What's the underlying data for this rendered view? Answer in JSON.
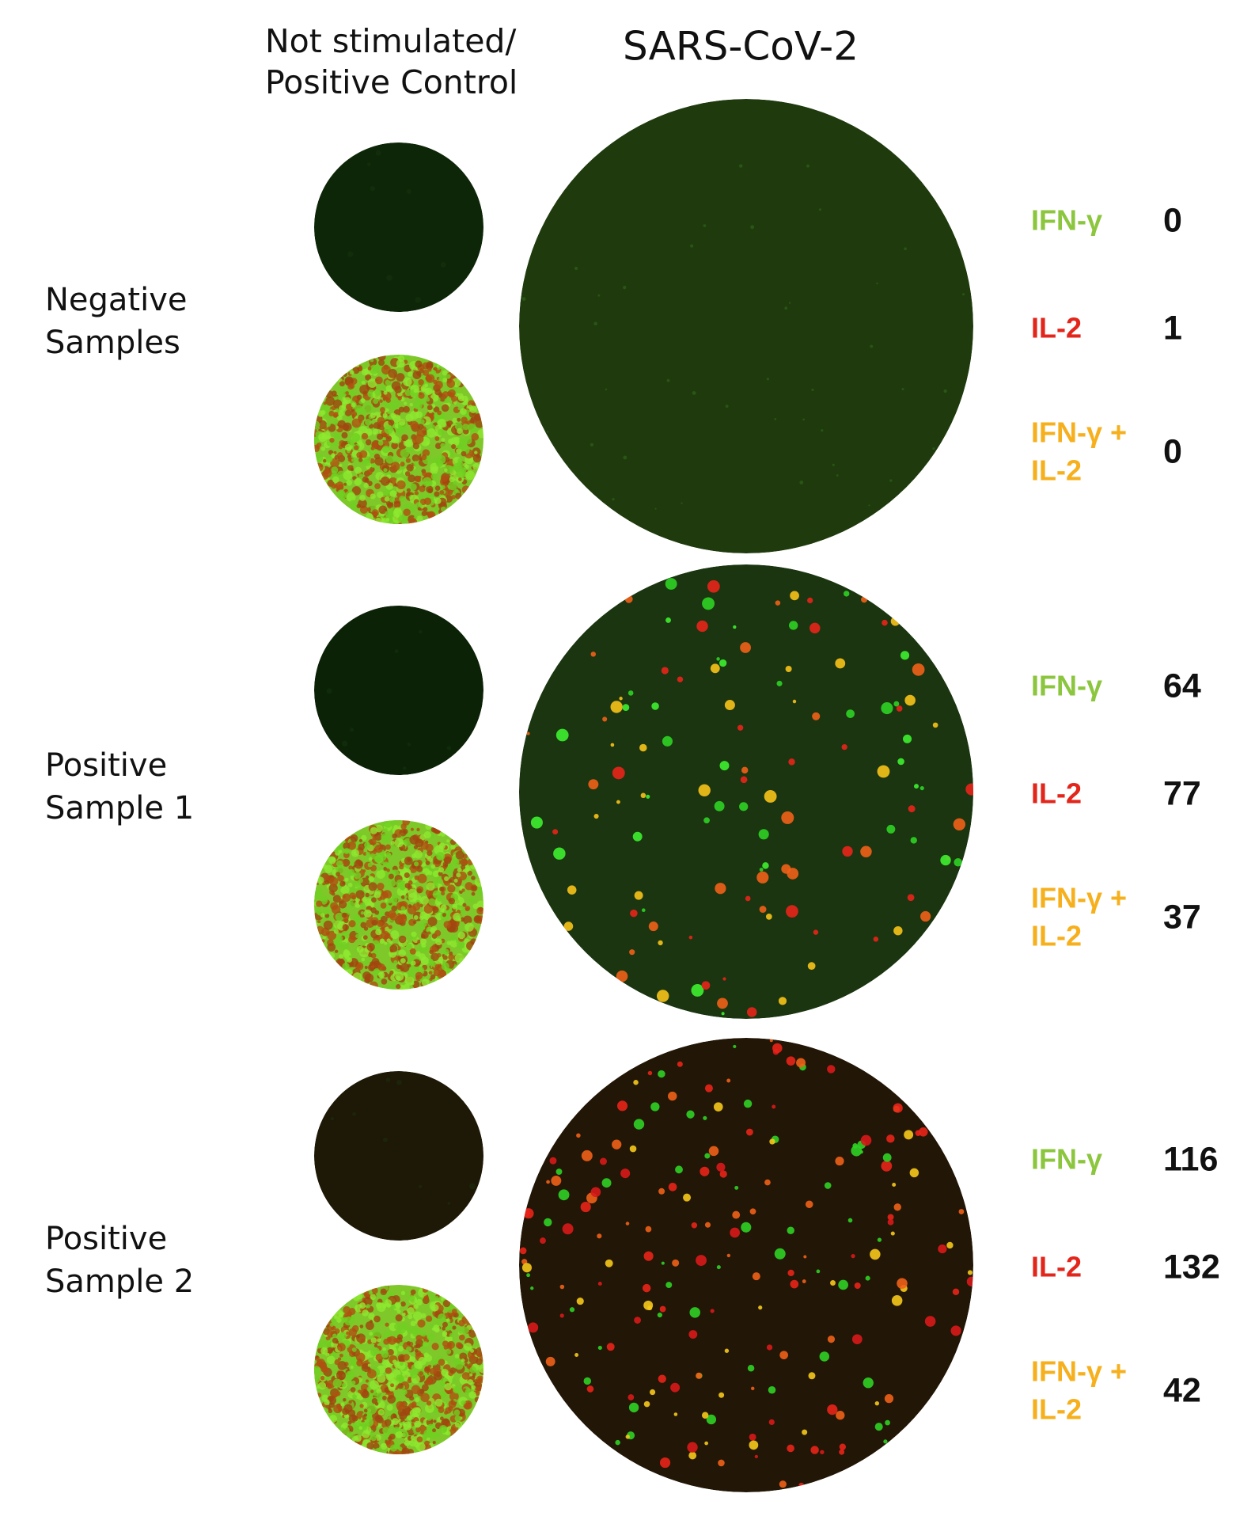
{
  "header": {
    "control_lines": [
      "Not stimulated/",
      "Positive Control"
    ],
    "stimulus": "SARS-CoV-2"
  },
  "marker_colors": [
    "#8cc63e",
    "#e3261c",
    "#f6b01e"
  ],
  "rows": [
    {
      "label_lines": [
        "Negative",
        "Samples"
      ],
      "counts": [
        {
          "label_lines": [
            "IFN-γ"
          ],
          "value": 0
        },
        {
          "label_lines": [
            "IL-2"
          ],
          "value": 1
        },
        {
          "label_lines": [
            "IFN-γ +",
            "IL-2"
          ],
          "value": 0
        }
      ]
    },
    {
      "label_lines": [
        "Positive",
        "Sample 1"
      ],
      "counts": [
        {
          "label_lines": [
            "IFN-γ"
          ],
          "value": 64
        },
        {
          "label_lines": [
            "IL-2"
          ],
          "value": 77
        },
        {
          "label_lines": [
            "IFN-γ +",
            "IL-2"
          ],
          "value": 37
        }
      ]
    },
    {
      "label_lines": [
        "Positive",
        "Sample 2"
      ],
      "counts": [
        {
          "label_lines": [
            "IFN-γ"
          ],
          "value": 116
        },
        {
          "label_lines": [
            "IL-2"
          ],
          "value": 132
        },
        {
          "label_lines": [
            "IFN-γ +",
            "IL-2"
          ],
          "value": 42
        }
      ]
    }
  ]
}
